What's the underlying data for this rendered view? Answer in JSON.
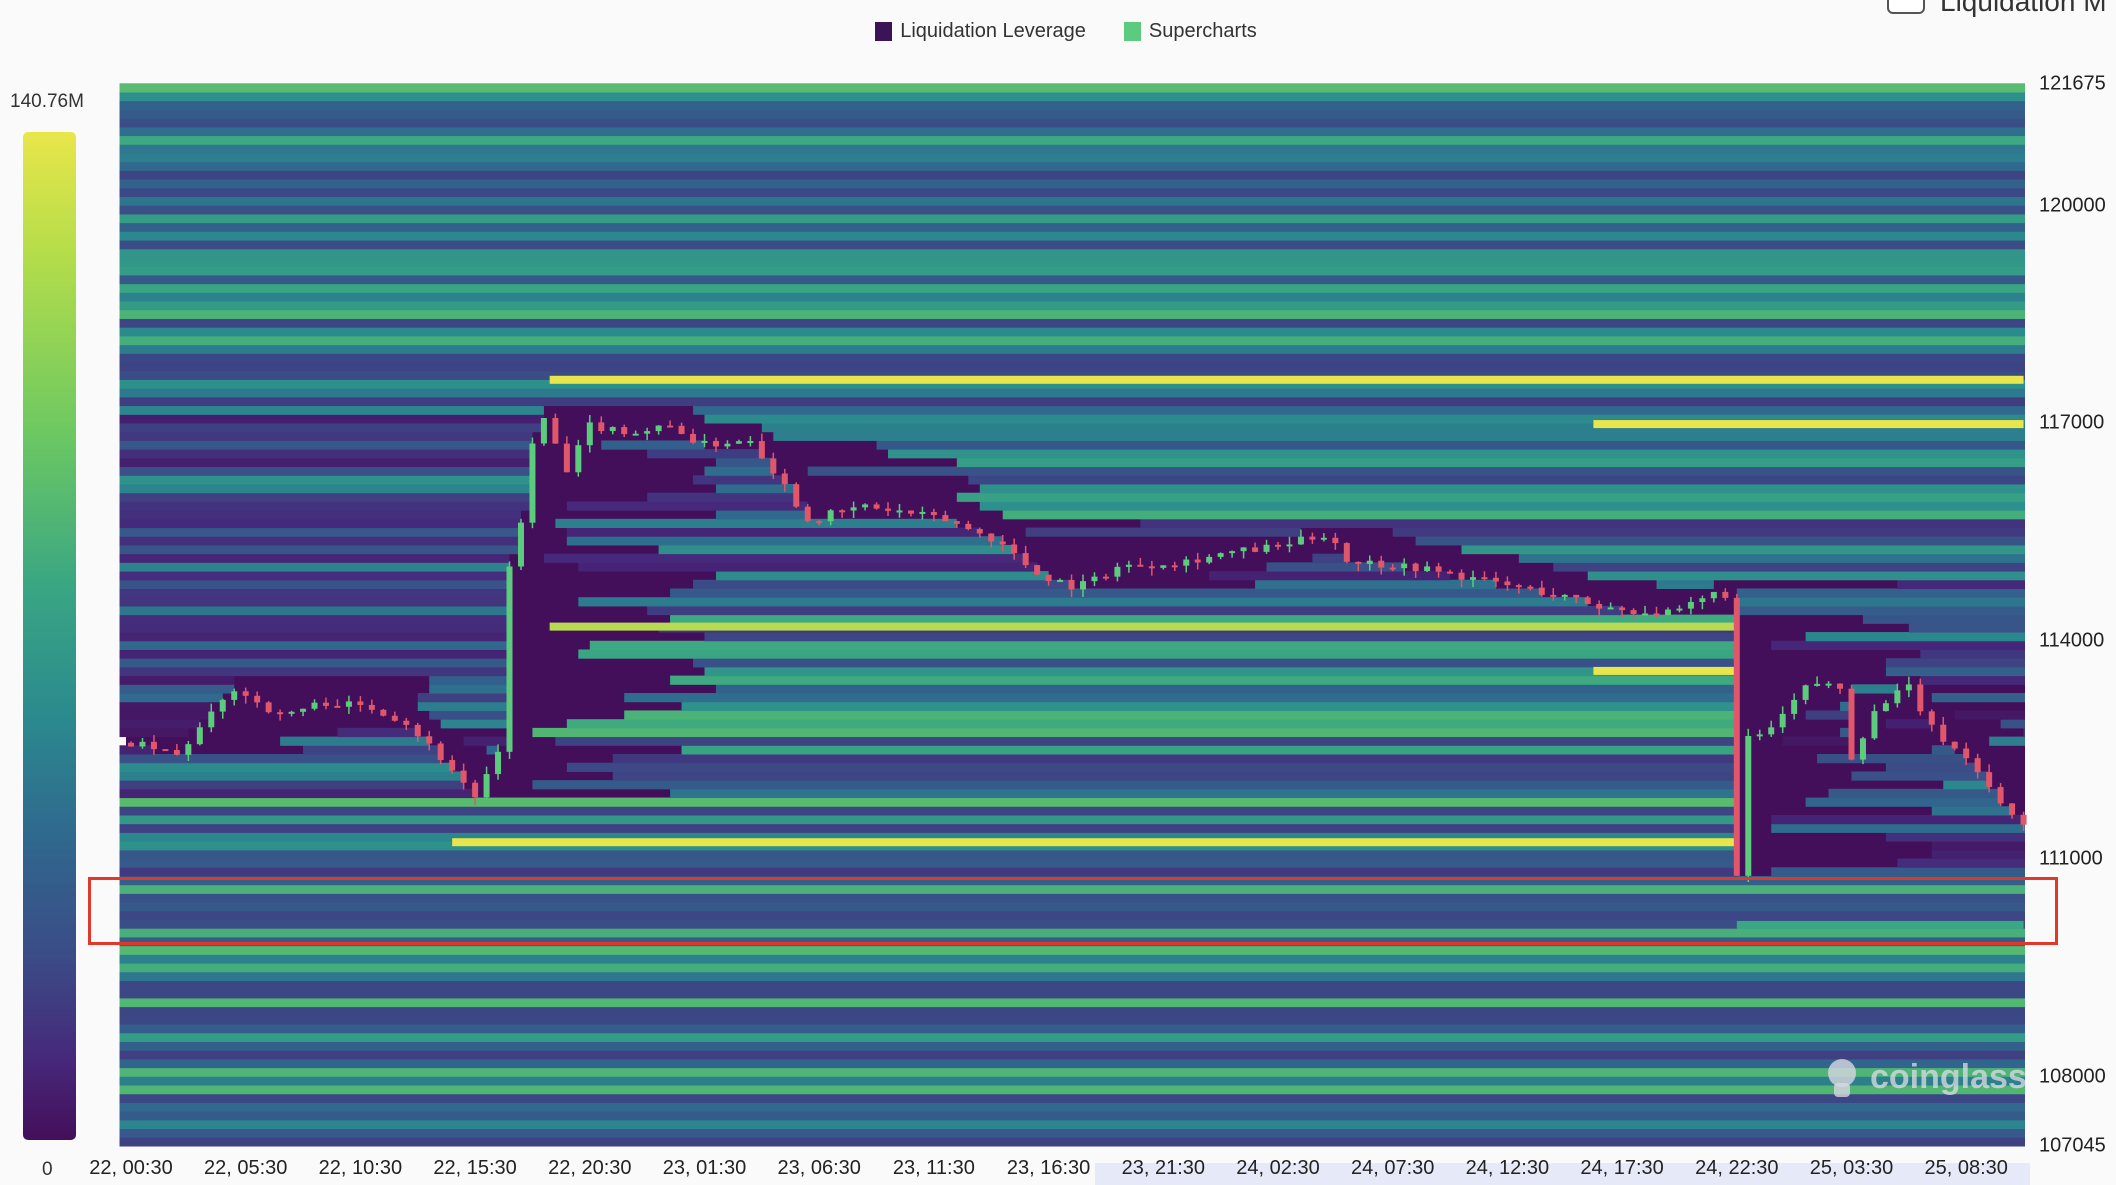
{
  "legend": [
    {
      "label": "Liquidation Leverage",
      "color": "#3d1357"
    },
    {
      "label": "Supercharts",
      "color": "#5dcb7d"
    }
  ],
  "toggle": {
    "label": "Liquidation M",
    "checked": false
  },
  "watermark": "coinglass",
  "colors": {
    "low": "#440f5a",
    "mid": "#2b8a8e",
    "high": "#e8e64a",
    "up": "#5dcb7d",
    "down": "#e0566a",
    "highlight": "#e0392a"
  },
  "chart_data": {
    "type": "heatmap",
    "title": "",
    "colorbar": {
      "max_label": "140.76M",
      "min_label": "0",
      "colormap": "viridis"
    },
    "ylim": [
      107045,
      121675
    ],
    "y_ticks": [
      "121675",
      "120000",
      "117000",
      "114000",
      "111000",
      "108000",
      "107045"
    ],
    "x_ticks": [
      "22, 00:30",
      "22, 05:30",
      "22, 10:30",
      "22, 15:30",
      "22, 20:30",
      "23, 01:30",
      "23, 06:30",
      "23, 11:30",
      "23, 16:30",
      "23, 21:30",
      "24, 02:30",
      "24, 07:30",
      "24, 12:30",
      "24, 17:30",
      "24, 22:30",
      "25, 03:30",
      "25, 08:30"
    ],
    "highlighted_range": [
      109900,
      110800
    ],
    "key_levels": [
      {
        "price": 117600,
        "start": "22 18:45",
        "end": "25 11:00",
        "intensity": 1.0
      },
      {
        "price": 116990,
        "start": "24 16:15",
        "end": "25 11:00",
        "intensity": 1.0
      },
      {
        "price": 114200,
        "start": "22 18:45",
        "end": "24 22:30",
        "intensity": 0.95
      },
      {
        "price": 113590,
        "start": "24 16:15",
        "end": "24 22:30",
        "intensity": 1.0
      },
      {
        "price": 111230,
        "start": "22 14:30",
        "end": "24 22:30",
        "intensity": 1.0
      },
      {
        "price": 110090,
        "start": "24 22:30",
        "end": "25 11:00",
        "intensity": 0.75
      }
    ],
    "price_path": [
      [
        "22 00:30",
        112600
      ],
      [
        "22 02:30",
        112420
      ],
      [
        "22 05:00",
        113350
      ],
      [
        "22 07:00",
        112975
      ],
      [
        "22 09:00",
        113160
      ],
      [
        "22 11:15",
        113070
      ],
      [
        "22 12:30",
        112880
      ],
      [
        "22 14:15",
        112320
      ],
      [
        "22 15:30",
        111860
      ],
      [
        "22 16:30",
        112420
      ],
      [
        "22 17:00",
        115020
      ],
      [
        "22 17:30",
        115670
      ],
      [
        "22 18:00",
        116690
      ],
      [
        "22 18:30",
        117060
      ],
      [
        "22 19:30",
        116320
      ],
      [
        "22 20:30",
        116970
      ],
      [
        "22 22:30",
        116880
      ],
      [
        "23 00:15",
        116970
      ],
      [
        "23 01:15",
        116690
      ],
      [
        "23 03:30",
        116790
      ],
      [
        "23 05:00",
        116140
      ],
      [
        "23 06:00",
        115670
      ],
      [
        "23 08:30",
        115860
      ],
      [
        "23 12:00",
        115670
      ],
      [
        "23 14:15",
        115390
      ],
      [
        "23 16:00",
        114930
      ],
      [
        "23 17:45",
        114740
      ],
      [
        "23 19:30",
        115020
      ],
      [
        "23 22:30",
        115110
      ],
      [
        "24 00:15",
        115210
      ],
      [
        "24 02:30",
        115300
      ],
      [
        "24 04:45",
        115490
      ],
      [
        "24 05:30",
        115110
      ],
      [
        "24 08:30",
        115020
      ],
      [
        "24 11:30",
        114830
      ],
      [
        "24 14:30",
        114650
      ],
      [
        "24 16:45",
        114460
      ],
      [
        "24 19:45",
        114370
      ],
      [
        "24 21:30",
        114650
      ],
      [
        "24 22:15",
        114650
      ],
      [
        "24 22:30",
        110740
      ],
      [
        "24 22:45",
        112600
      ],
      [
        "25 00:00",
        112790
      ],
      [
        "25 01:45",
        113440
      ],
      [
        "25 03:00",
        113350
      ],
      [
        "25 03:30",
        112420
      ],
      [
        "25 04:45",
        113160
      ],
      [
        "25 06:00",
        113350
      ],
      [
        "25 07:00",
        112790
      ],
      [
        "25 08:45",
        112320
      ],
      [
        "25 10:00",
        111770
      ],
      [
        "25 11:00",
        111490
      ]
    ]
  }
}
